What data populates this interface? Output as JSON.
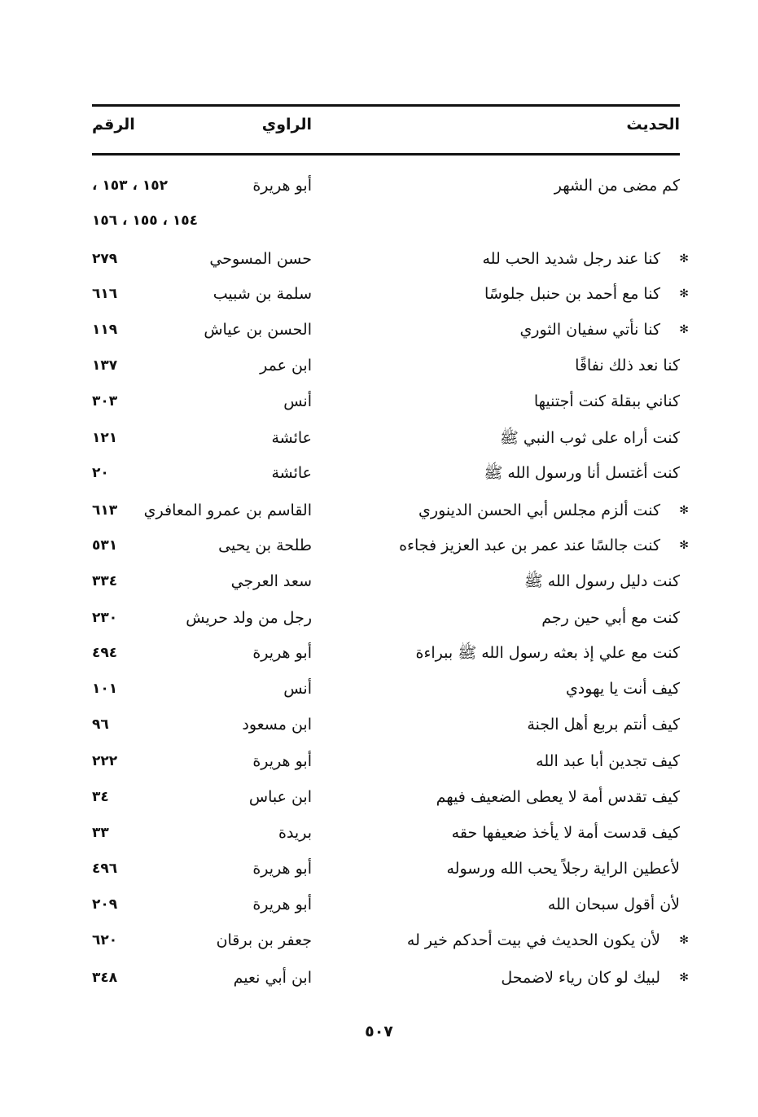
{
  "header": {
    "hadith": "الحديث",
    "narrator": "الراوي",
    "number": "الرقم"
  },
  "star_symbol": "✻",
  "rows": [
    {
      "star": false,
      "hadith": "كم مضى من الشهر",
      "narrator": "أبو هريرة",
      "number": "١٥٢ ، ١٥٣ ،"
    },
    {
      "star": false,
      "hadith": "",
      "narrator": "",
      "number": "١٥٤ ، ١٥٥ ، ١٥٦"
    },
    {
      "star": true,
      "hadith": "كنا عند رجل شديد الحب لله",
      "narrator": "حسن المسوحي",
      "number": "٢٧٩"
    },
    {
      "star": true,
      "hadith": "كنا مع أحمد بن حنبل جلوسًا",
      "narrator": "سلمة بن شبيب",
      "number": "٦١٦"
    },
    {
      "star": true,
      "hadith": "كنا نأتي سفيان الثوري",
      "narrator": "الحسن بن عياش",
      "number": "١١٩"
    },
    {
      "star": false,
      "hadith": "كنا نعد ذلك نفاقًا",
      "narrator": "ابن عمر",
      "number": "١٣٧"
    },
    {
      "star": false,
      "hadith": "كناني ببقلة كنت أجتنيها",
      "narrator": "أنس",
      "number": "٣٠٣"
    },
    {
      "star": false,
      "hadith": "كنت أراه على ثوب النبي ﷺ",
      "narrator": "عائشة",
      "number": "١٢١"
    },
    {
      "star": false,
      "hadith": "كنت أغتسل أنا ورسول الله ﷺ",
      "narrator": "عائشة",
      "number": "٢٠"
    },
    {
      "star": true,
      "hadith": "كنت ألزم مجلس أبي الحسن الدينوري",
      "narrator": "القاسم بن عمرو المعافري",
      "number": "٦١٣"
    },
    {
      "star": true,
      "hadith": "كنت جالسًا عند عمر بن عبد العزيز فجاءه",
      "narrator": "طلحة بن يحيى",
      "number": "٥٣١"
    },
    {
      "star": false,
      "hadith": "كنت دليل رسول الله ﷺ",
      "narrator": "سعد العرجي",
      "number": "٣٣٤"
    },
    {
      "star": false,
      "hadith": "كنت مع أبي حين رجم",
      "narrator": "رجل من ولد حريش",
      "number": "٢٣٠"
    },
    {
      "star": false,
      "hadith": "كنت مع علي إذ بعثه رسول الله ﷺ ببراءة",
      "narrator": "أبو هريرة",
      "number": "٤٩٤"
    },
    {
      "star": false,
      "hadith": "كيف أنت يا يهودي",
      "narrator": "أنس",
      "number": "١٠١"
    },
    {
      "star": false,
      "hadith": "كيف أنتم بربع أهل الجنة",
      "narrator": "ابن مسعود",
      "number": "٩٦"
    },
    {
      "star": false,
      "hadith": "كيف تجدين أبا عبد الله",
      "narrator": "أبو هريرة",
      "number": "٢٢٢"
    },
    {
      "star": false,
      "hadith": "كيف تقدس أمة لا يعطى الضعيف فيهم",
      "narrator": "ابن عباس",
      "number": "٣٤"
    },
    {
      "star": false,
      "hadith": "كيف قدست أمة لا يأخذ ضعيفها حقه",
      "narrator": "بريدة",
      "number": "٣٣"
    },
    {
      "star": false,
      "hadith": "لأعطين الراية رجلاً يحب الله ورسوله",
      "narrator": "أبو هريرة",
      "number": "٤٩٦"
    },
    {
      "star": false,
      "hadith": "لأن أقول سبحان الله",
      "narrator": "أبو هريرة",
      "number": "٢٠٩"
    },
    {
      "star": true,
      "hadith": "لأن يكون الحديث في بيت أحدكم خير له",
      "narrator": "جعفر بن برقان",
      "number": "٦٢٠"
    },
    {
      "star": true,
      "hadith": "لبيك لو كان رياء لاضمحل",
      "narrator": "ابن أبي نعيم",
      "number": "٣٤٨"
    }
  ],
  "page_number": "٥٠٧"
}
